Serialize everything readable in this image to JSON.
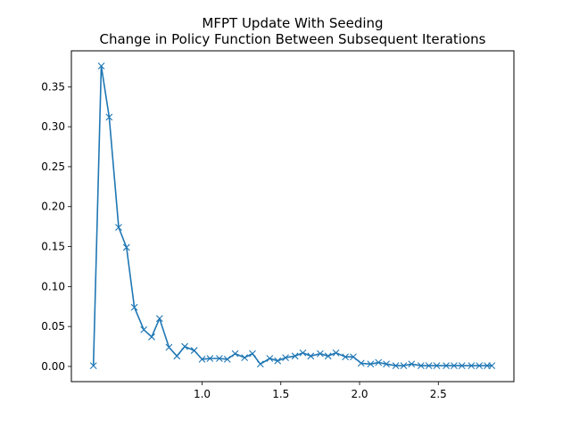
{
  "chart_data": {
    "type": "line",
    "title": "MFPT Update With Seeding",
    "subtitle": "Change in Policy Function Between Subsequent Iterations",
    "xlabel": "",
    "ylabel": "",
    "xlim": [
      0.17,
      2.98
    ],
    "ylim": [
      -0.019,
      0.395
    ],
    "grid": false,
    "legend": "none",
    "marker": "x",
    "line_color": "#1f77b4",
    "x_ticks": [
      1.0,
      1.5,
      2.0,
      2.5
    ],
    "x_tick_labels": [
      "1.0",
      "1.5",
      "2.0",
      "2.5"
    ],
    "y_ticks": [
      0.0,
      0.05,
      0.1,
      0.15,
      0.2,
      0.25,
      0.3,
      0.35
    ],
    "y_tick_labels": [
      "0.00",
      "0.05",
      "0.10",
      "0.15",
      "0.20",
      "0.25",
      "0.30",
      "0.35"
    ],
    "series": [
      {
        "x": [
          0.31,
          0.36,
          0.41,
          0.47,
          0.52,
          0.57,
          0.63,
          0.68,
          0.73,
          0.79,
          0.84,
          0.89,
          0.95,
          1.0,
          1.05,
          1.11,
          1.16,
          1.21,
          1.27,
          1.32,
          1.37,
          1.43,
          1.48,
          1.53,
          1.59,
          1.64,
          1.69,
          1.75,
          1.8,
          1.85,
          1.91,
          1.96,
          2.01,
          2.07,
          2.12,
          2.17,
          2.23,
          2.28,
          2.33,
          2.39,
          2.44,
          2.49,
          2.55,
          2.6,
          2.65,
          2.71,
          2.76,
          2.81,
          2.84
        ],
        "y": [
          0.001,
          0.376,
          0.312,
          0.174,
          0.149,
          0.074,
          0.046,
          0.037,
          0.06,
          0.024,
          0.013,
          0.025,
          0.02,
          0.009,
          0.01,
          0.01,
          0.009,
          0.016,
          0.011,
          0.016,
          0.003,
          0.01,
          0.007,
          0.011,
          0.013,
          0.017,
          0.013,
          0.016,
          0.013,
          0.017,
          0.012,
          0.012,
          0.004,
          0.003,
          0.005,
          0.003,
          0.001,
          0.001,
          0.003,
          0.001,
          0.001,
          0.001,
          0.001,
          0.001,
          0.001,
          0.001,
          0.001,
          0.001,
          0.001
        ]
      }
    ]
  }
}
